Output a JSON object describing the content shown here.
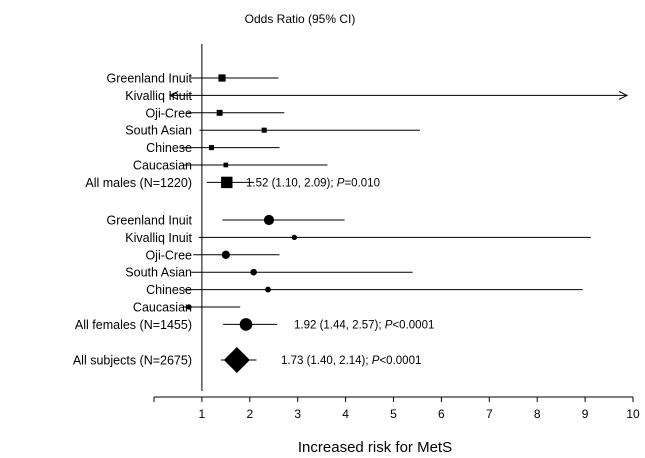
{
  "chart_data": {
    "type": "forest",
    "title": "Odds Ratio (95% CI)",
    "xlabel": "Increased risk for MetS",
    "xlim": [
      0,
      10
    ],
    "xticks": [
      1,
      2,
      3,
      4,
      5,
      6,
      7,
      8,
      9,
      10
    ],
    "reference_line": 1,
    "groups": [
      {
        "rows": [
          {
            "label": "Greenland Inuit",
            "or": 1.42,
            "lo": 0.77,
            "hi": 2.6,
            "marker": "square",
            "weight": 2
          },
          {
            "label": "Kivalliq Inuit",
            "or": null,
            "lo": null,
            "hi": null,
            "marker": "none",
            "arrows": "both"
          },
          {
            "label": "Oji-Cree",
            "or": 1.37,
            "lo": 0.7,
            "hi": 2.72,
            "marker": "square",
            "weight": 1.4
          },
          {
            "label": "South Asian",
            "or": 2.3,
            "lo": 0.95,
            "hi": 5.55,
            "marker": "square",
            "weight": 1
          },
          {
            "label": "Chinese",
            "or": 1.2,
            "lo": 0.58,
            "hi": 2.62,
            "marker": "square",
            "weight": 1
          },
          {
            "label": "Caucasian",
            "or": 1.5,
            "lo": 0.6,
            "hi": 3.62,
            "marker": "square",
            "weight": 0.8
          }
        ],
        "summary": {
          "label": "All males (N=1220)",
          "or": 1.52,
          "lo": 1.1,
          "hi": 2.09,
          "marker": "square",
          "weight": 4,
          "annotation": "1.52 (1.10, 2.09); ",
          "p_label": "P",
          "p_text": "=0.010"
        }
      },
      {
        "rows": [
          {
            "label": "Greenland Inuit",
            "or": 2.4,
            "lo": 1.43,
            "hi": 3.98,
            "marker": "circle",
            "weight": 3
          },
          {
            "label": "Kivalliq Inuit",
            "or": 2.93,
            "lo": 0.93,
            "hi": 9.12,
            "marker": "circle",
            "weight": 1
          },
          {
            "label": "Oji-Cree",
            "or": 1.5,
            "lo": 0.82,
            "hi": 2.62,
            "marker": "circle",
            "weight": 2.2
          },
          {
            "label": "South Asian",
            "or": 2.08,
            "lo": 0.78,
            "hi": 5.4,
            "marker": "circle",
            "weight": 1.5
          },
          {
            "label": "Chinese",
            "or": 2.38,
            "lo": 0.62,
            "hi": 8.95,
            "marker": "circle",
            "weight": 1.2
          },
          {
            "label": "Caucasian",
            "or": 0.73,
            "lo": 0.6,
            "hi": 1.8,
            "marker": "circle",
            "weight": 1
          }
        ],
        "summary": {
          "label": "All females (N=1455)",
          "or": 1.92,
          "lo": 1.44,
          "hi": 2.57,
          "marker": "circle",
          "weight": 4,
          "annotation": "1.92 (1.44, 2.57); ",
          "p_label": "P",
          "p_text": "<0.0001"
        }
      }
    ],
    "overall": {
      "label": "All subjects (N=2675)",
      "or": 1.73,
      "lo": 1.4,
      "hi": 2.14,
      "marker": "diamond",
      "annotation": "1.73 (1.40, 2.14); ",
      "p_label": "P",
      "p_text": "<0.0001"
    },
    "colors": {
      "ink": "#000000",
      "background": "#ffffff"
    }
  }
}
